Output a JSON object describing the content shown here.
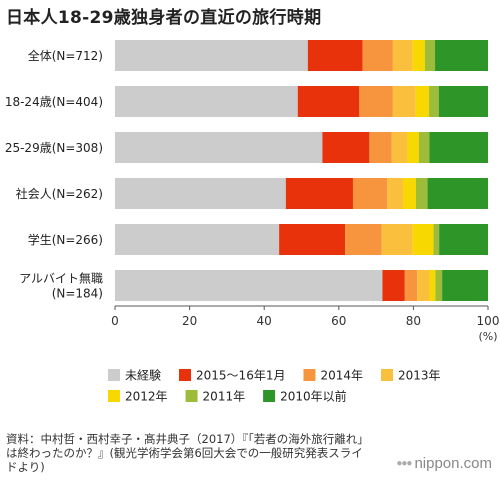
{
  "title": "日本人18-29歳独身者の直近の旅行時期",
  "chart_data": {
    "type": "bar",
    "orientation": "horizontal",
    "stacked": true,
    "percent": true,
    "xlim": [
      0,
      100
    ],
    "xticks": [
      "0",
      "20",
      "40",
      "60",
      "80",
      "100"
    ],
    "unit_label": "(%)",
    "grid": false,
    "legend_position": "bottom",
    "categories": [
      [
        "全体(N=712)"
      ],
      [
        "18-24歳(N=404)"
      ],
      [
        "25-29歳(N=308)"
      ],
      [
        "社会人(N=262)"
      ],
      [
        "学生(N=266)"
      ],
      [
        "アルバイト無職",
        "(N=184)"
      ]
    ],
    "series": [
      {
        "name": "未経験",
        "color": "#cccccc",
        "values": [
          51.7,
          49.0,
          55.6,
          45.8,
          44.0,
          71.7
        ]
      },
      {
        "name": "2015〜16年1月",
        "color": "#e8320c",
        "values": [
          14.7,
          16.5,
          12.6,
          18.0,
          17.7,
          6.0
        ]
      },
      {
        "name": "2014年",
        "color": "#f6953d",
        "values": [
          8.1,
          9.0,
          6.0,
          9.2,
          9.8,
          3.3
        ]
      },
      {
        "name": "2013年",
        "color": "#fbbf3e",
        "values": [
          5.3,
          6.1,
          4.2,
          4.2,
          8.3,
          3.3
        ]
      },
      {
        "name": "2012年",
        "color": "#f7d800",
        "values": [
          3.3,
          3.6,
          3.1,
          3.5,
          5.6,
          1.6
        ]
      },
      {
        "name": "2011年",
        "color": "#9cbc3a",
        "values": [
          2.7,
          2.6,
          2.8,
          3.1,
          1.5,
          1.8
        ]
      },
      {
        "name": "2010年以前",
        "color": "#2e9529",
        "values": [
          14.2,
          13.2,
          15.7,
          16.2,
          13.1,
          12.3
        ]
      }
    ]
  },
  "source": "資料：中村哲・西村幸子・髙井典子（2017）『「若者の海外旅行離れ」は終わったのか？』(観光学術学会第6回大会での一般研究発表スライドより)",
  "logo": "nippon.com",
  "logo_dots": "●●●"
}
